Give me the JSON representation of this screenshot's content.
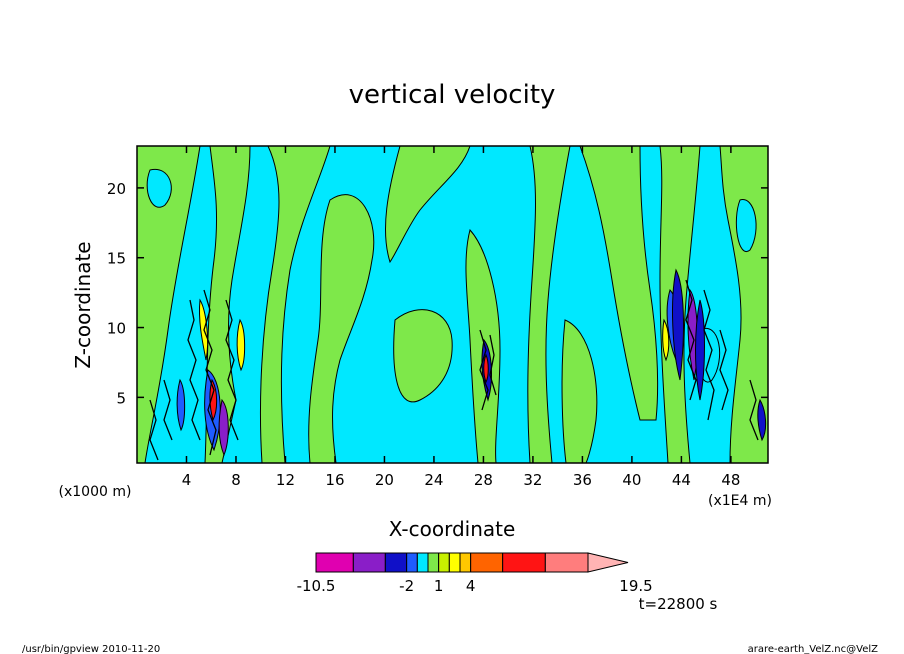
{
  "chart_data": {
    "type": "heatmap",
    "title": "vertical velocity",
    "xlabel": "X-coordinate",
    "ylabel": "Z-coordinate",
    "x_unit_left": "(x1000 m)",
    "x_unit_right": "(x1E4 m)",
    "xlim": [
      0,
      51
    ],
    "ylim": [
      0.3,
      23
    ],
    "x_ticks": [
      4,
      8,
      12,
      16,
      20,
      24,
      28,
      32,
      36,
      40,
      44,
      48
    ],
    "y_ticks": [
      5,
      10,
      15,
      20
    ],
    "x_tick_labels": [
      "4",
      "8",
      "12",
      "16",
      "20",
      "24",
      "28",
      "32",
      "36",
      "40",
      "44",
      "48"
    ],
    "y_tick_labels": [
      "5",
      "10",
      "15",
      "20"
    ],
    "colorbar": {
      "levels": [
        -10.5,
        -7,
        -4,
        -2,
        -1,
        0,
        1,
        2,
        3,
        4,
        7,
        11,
        15,
        19.5
      ],
      "colors": [
        "#e000b0",
        "#8a1ec8",
        "#1010c8",
        "#1f5cff",
        "#00e8ff",
        "#7ee84a",
        "#c8f000",
        "#ffff00",
        "#ffc800",
        "#ff6400",
        "#ff1414",
        "#ff7d7d",
        "#ffb4b4"
      ],
      "labels": [
        "-10.5",
        "-2",
        "1",
        "4",
        "19.5"
      ],
      "label_values": [
        -10.5,
        -2,
        1,
        4,
        19.5
      ]
    },
    "time_label": "t=22800  s",
    "background_field": "mostly cyan (near-zero negative) with green (near-zero positive) bands; strong updraft/downdraft cores near x≈6, x≈29 and x≈45"
  },
  "footer": {
    "left": "/usr/bin/gpview   2010-11-20",
    "right": "arare-earth_VelZ.nc@VelZ"
  }
}
